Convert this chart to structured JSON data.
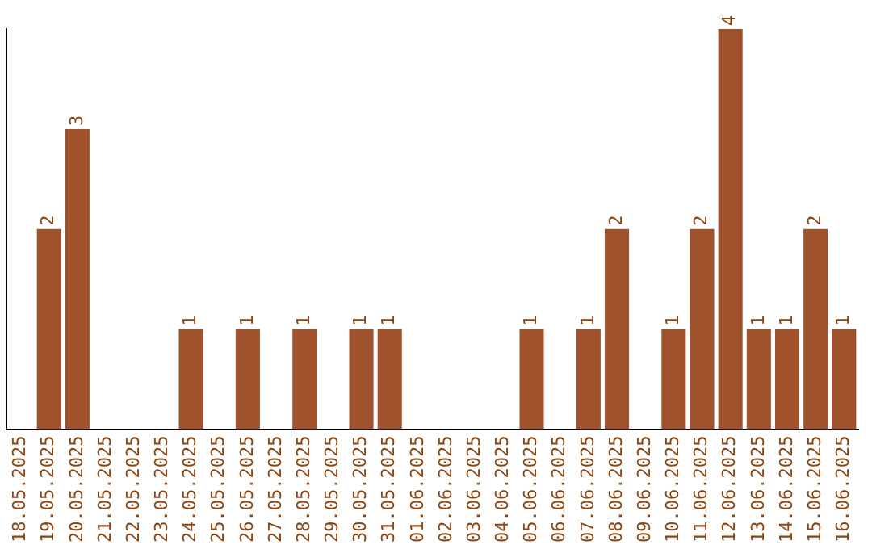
{
  "chart_data": {
    "type": "bar",
    "categories": [
      "18.05.2025",
      "19.05.2025",
      "20.05.2025",
      "21.05.2025",
      "22.05.2025",
      "23.05.2025",
      "24.05.2025",
      "25.05.2025",
      "26.05.2025",
      "27.05.2025",
      "28.05.2025",
      "29.05.2025",
      "30.05.2025",
      "31.05.2025",
      "01.06.2025",
      "02.06.2025",
      "03.06.2025",
      "04.06.2025",
      "05.06.2025",
      "06.06.2025",
      "07.06.2025",
      "08.06.2025",
      "09.06.2025",
      "10.06.2025",
      "11.06.2025",
      "12.06.2025",
      "13.06.2025",
      "14.06.2025",
      "15.06.2025",
      "16.06.2025"
    ],
    "values": [
      0,
      2,
      3,
      0,
      0,
      0,
      1,
      0,
      1,
      0,
      1,
      0,
      1,
      1,
      0,
      0,
      0,
      0,
      1,
      0,
      1,
      2,
      0,
      1,
      2,
      4,
      1,
      1,
      2,
      1
    ],
    "value_labels": [
      null,
      "2",
      "3",
      null,
      null,
      null,
      "1",
      null,
      "1",
      null,
      "1",
      null,
      "1",
      "1",
      null,
      null,
      null,
      null,
      "1",
      null,
      "1",
      "2",
      null,
      "1",
      "2",
      "4",
      "1",
      "1",
      "2",
      "1"
    ],
    "color": "#a0522d",
    "grid": false,
    "legend": false,
    "tick_labels": "x"
  }
}
